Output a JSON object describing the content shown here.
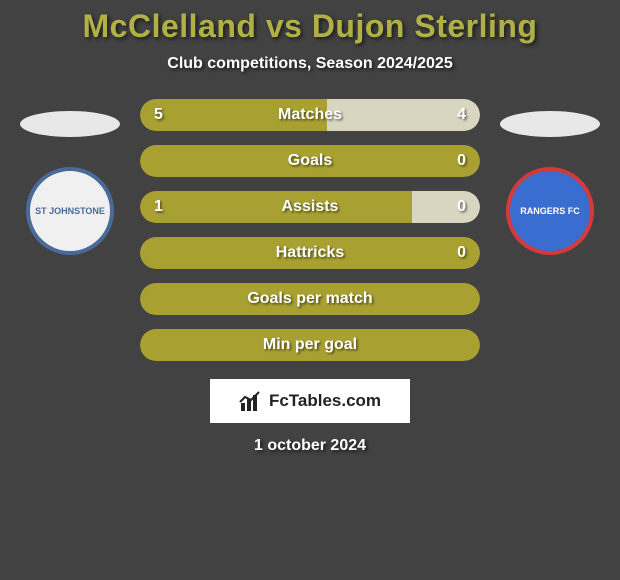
{
  "title": "McClelland vs Dujon Sterling",
  "subtitle": "Club competitions, Season 2024/2025",
  "date": "1 october 2024",
  "branding": "FcTables.com",
  "colors": {
    "background": "#424242",
    "title_color": "#b0b047",
    "text_color": "#ffffff",
    "bar_olive": "#a8a030",
    "bar_pale": "#d8d6c0",
    "ellipse": "#e8e8e8"
  },
  "left_team": {
    "crest_label": "ST JOHNSTONE",
    "crest_bg": "#f0f0f0",
    "crest_border": "#4a6a9a"
  },
  "right_team": {
    "crest_label": "RANGERS FC",
    "crest_bg": "#3a6dd0",
    "crest_border": "#d43a3a"
  },
  "stats": [
    {
      "label": "Matches",
      "left_val": "5",
      "right_val": "4",
      "left_pct": 55,
      "right_pct": 45,
      "left_color": "#a8a030",
      "right_color": "#d8d6c0",
      "show_vals": true
    },
    {
      "label": "Goals",
      "left_val": "",
      "right_val": "0",
      "left_pct": 100,
      "right_pct": 0,
      "left_color": "#a8a030",
      "right_color": "#a8a030",
      "show_vals": true,
      "full_olive": true
    },
    {
      "label": "Assists",
      "left_val": "1",
      "right_val": "0",
      "left_pct": 80,
      "right_pct": 20,
      "left_color": "#a8a030",
      "right_color": "#d8d6c0",
      "show_vals": true
    },
    {
      "label": "Hattricks",
      "left_val": "",
      "right_val": "0",
      "left_pct": 100,
      "right_pct": 0,
      "left_color": "#a8a030",
      "right_color": "#a8a030",
      "show_vals": true,
      "full_olive": true
    },
    {
      "label": "Goals per match",
      "left_val": "",
      "right_val": "",
      "left_pct": 100,
      "right_pct": 0,
      "left_color": "#a8a030",
      "right_color": "#a8a030",
      "show_vals": false,
      "full_olive": true
    },
    {
      "label": "Min per goal",
      "left_val": "",
      "right_val": "",
      "left_pct": 100,
      "right_pct": 0,
      "left_color": "#a8a030",
      "right_color": "#a8a030",
      "show_vals": false,
      "full_olive": true
    }
  ]
}
